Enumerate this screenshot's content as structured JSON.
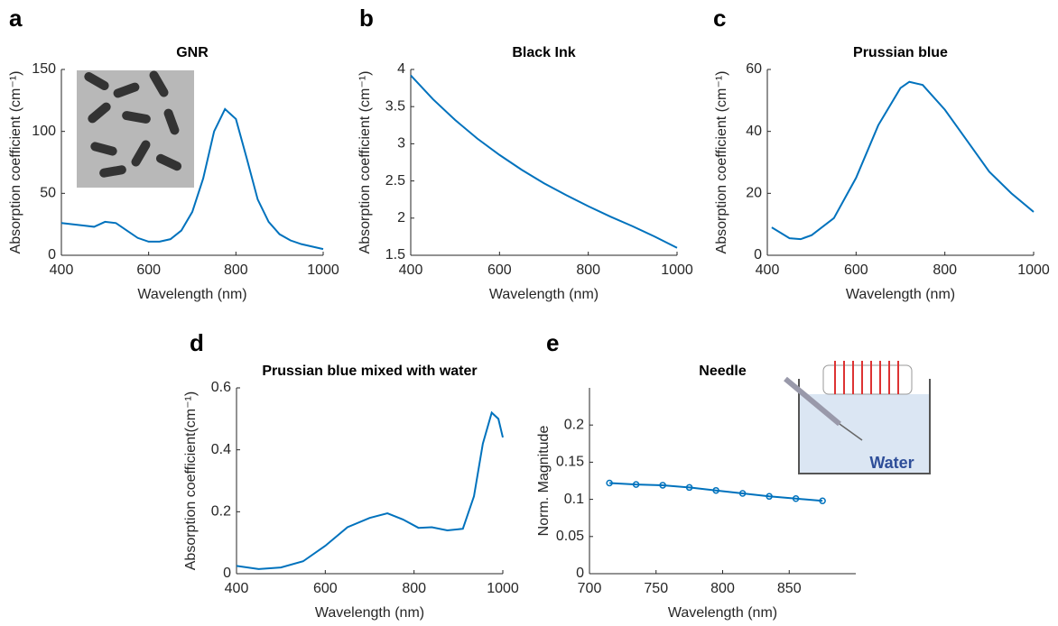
{
  "chart_data": [
    {
      "type": "line",
      "panel": "a",
      "title": "GNR",
      "x_label": "Wavelength (nm)",
      "y_label": "Absorption coefficient (cm⁻¹)",
      "x": [
        400,
        425,
        450,
        475,
        500,
        525,
        550,
        575,
        600,
        625,
        650,
        675,
        700,
        725,
        750,
        775,
        800,
        825,
        850,
        875,
        900,
        925,
        950,
        975,
        1000
      ],
      "values": [
        26,
        25,
        24,
        23,
        27,
        26,
        20,
        14,
        11,
        11,
        13,
        20,
        35,
        62,
        100,
        118,
        110,
        78,
        45,
        27,
        17,
        12,
        9,
        7,
        5
      ],
      "color": "#0072bd",
      "xlim": [
        400,
        1000
      ],
      "xticks": [
        400,
        600,
        800,
        1000
      ],
      "ylim": [
        0,
        150
      ],
      "yticks": [
        0,
        50,
        100,
        150
      ]
    },
    {
      "type": "line",
      "panel": "b",
      "title": "Black Ink",
      "x_label": "Wavelength (nm)",
      "y_label": "Absorption coefficient (cm⁻¹)",
      "x": [
        400,
        450,
        500,
        550,
        600,
        650,
        700,
        750,
        800,
        850,
        900,
        950,
        1000
      ],
      "values": [
        3.92,
        3.6,
        3.32,
        3.07,
        2.85,
        2.65,
        2.47,
        2.31,
        2.16,
        2.02,
        1.89,
        1.75,
        1.6
      ],
      "color": "#0072bd",
      "xlim": [
        400,
        1000
      ],
      "xticks": [
        400,
        600,
        800,
        1000
      ],
      "ylim": [
        1.5,
        4
      ],
      "yticks": [
        1.5,
        2,
        2.5,
        3,
        3.5,
        4
      ]
    },
    {
      "type": "line",
      "panel": "c",
      "title": "Prussian blue",
      "x_label": "Wavelength (nm)",
      "y_label": "Absorption coefficient (cm⁻¹)",
      "x": [
        410,
        450,
        475,
        500,
        550,
        600,
        650,
        700,
        720,
        750,
        800,
        850,
        900,
        950,
        1000
      ],
      "values": [
        9,
        5.5,
        5.2,
        6.5,
        12,
        25,
        42,
        54,
        56,
        55,
        47,
        37,
        27,
        20,
        14
      ],
      "color": "#0072bd",
      "xlim": [
        400,
        1000
      ],
      "xticks": [
        400,
        600,
        800,
        1000
      ],
      "ylim": [
        0,
        60
      ],
      "yticks": [
        0,
        20,
        40,
        60
      ]
    },
    {
      "type": "line",
      "panel": "d",
      "title": "Prussian blue mixed with water",
      "x_label": "Wavelength (nm)",
      "y_label": "Absorption coefficient(cm⁻¹)",
      "x": [
        400,
        450,
        500,
        550,
        600,
        650,
        700,
        740,
        775,
        810,
        840,
        875,
        910,
        935,
        955,
        975,
        990,
        1000
      ],
      "values": [
        0.025,
        0.015,
        0.02,
        0.04,
        0.09,
        0.15,
        0.18,
        0.195,
        0.175,
        0.148,
        0.15,
        0.14,
        0.145,
        0.25,
        0.42,
        0.52,
        0.5,
        0.44
      ],
      "color": "#0072bd",
      "xlim": [
        400,
        1000
      ],
      "xticks": [
        400,
        600,
        800,
        1000
      ],
      "ylim": [
        0,
        0.6
      ],
      "yticks": [
        0,
        0.2,
        0.4,
        0.6
      ]
    },
    {
      "type": "line",
      "panel": "e",
      "title": "Needle",
      "x_label": "Wavelength (nm)",
      "y_label": "Norm. Magnitude",
      "inset_label": "Water",
      "x": [
        715,
        735,
        755,
        775,
        795,
        815,
        835,
        855,
        875
      ],
      "values": [
        0.122,
        0.12,
        0.119,
        0.116,
        0.112,
        0.108,
        0.104,
        0.101,
        0.098
      ],
      "markers": true,
      "color": "#0072bd",
      "xlim": [
        700,
        900
      ],
      "xticks": [
        700,
        750,
        800,
        850
      ],
      "ylim": [
        0,
        0.25
      ],
      "yticks": [
        0,
        0.05,
        0.1,
        0.15,
        0.2
      ]
    }
  ]
}
